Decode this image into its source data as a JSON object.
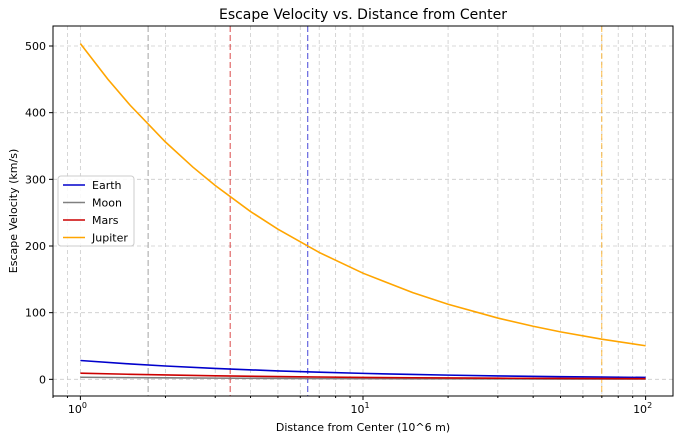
{
  "chart_data": {
    "type": "line",
    "title": "Escape Velocity vs. Distance from Center",
    "xlabel": "Distance from Center (10^6 m)",
    "ylabel": "Escape Velocity (km/s)",
    "xscale": "log",
    "xlim": [
      0.8,
      125
    ],
    "ylim": [
      -25,
      530
    ],
    "xticks": [
      {
        "value": 1,
        "base": "10",
        "exp": "0"
      },
      {
        "value": 10,
        "base": "10",
        "exp": "1"
      },
      {
        "value": 100,
        "base": "10",
        "exp": "2"
      }
    ],
    "yticks": [
      0,
      100,
      200,
      300,
      400,
      500
    ],
    "grid": true,
    "legend_position": "center-left",
    "series": [
      {
        "name": "Earth",
        "color": "#0000cc",
        "radius": 6.371,
        "x": [
          1,
          1.5,
          2,
          3,
          5,
          7,
          10,
          15,
          20,
          30,
          50,
          70,
          100
        ],
        "y": [
          28.26,
          23.07,
          19.98,
          16.31,
          12.64,
          10.68,
          8.94,
          7.3,
          6.32,
          5.16,
          4.0,
          3.38,
          2.83
        ]
      },
      {
        "name": "Moon",
        "color": "#808080",
        "radius": 1.737,
        "x": [
          1,
          1.5,
          2,
          3,
          5,
          7,
          10,
          15,
          20,
          30,
          50,
          70,
          100
        ],
        "y": [
          3.13,
          2.56,
          2.21,
          1.81,
          1.4,
          1.18,
          0.99,
          0.81,
          0.7,
          0.57,
          0.44,
          0.37,
          0.31
        ]
      },
      {
        "name": "Mars",
        "color": "#cc0000",
        "radius": 3.39,
        "x": [
          1,
          1.5,
          2,
          3,
          5,
          7,
          10,
          15,
          20,
          30,
          50,
          70,
          100
        ],
        "y": [
          9.24,
          7.54,
          6.53,
          5.33,
          4.13,
          3.49,
          2.92,
          2.39,
          2.07,
          1.69,
          1.31,
          1.1,
          0.92
        ]
      },
      {
        "name": "Jupiter",
        "color": "#ffa500",
        "radius": 69.911,
        "x": [
          1,
          1.25,
          1.5,
          2,
          2.5,
          3,
          4,
          5,
          7,
          10,
          15,
          20,
          30,
          40,
          50,
          70,
          100
        ],
        "y": [
          503.5,
          450.3,
          411.1,
          356.0,
          318.4,
          290.7,
          251.7,
          225.2,
          190.3,
          159.2,
          130.0,
          112.6,
          91.9,
          79.6,
          71.2,
          60.2,
          50.4
        ]
      }
    ]
  }
}
